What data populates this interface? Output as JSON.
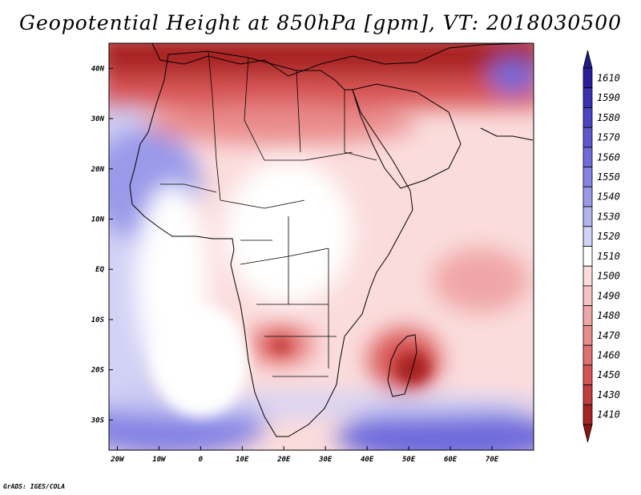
{
  "title": "Geopotential Height at 850hPa [gpm], VT: 2018030500",
  "credit": "GrADS: IGES/COLA",
  "map": {
    "region": "Africa",
    "field": "Geopotential Height at 850hPa",
    "units": "gpm",
    "valid_time": "2018030500",
    "lon_range": [
      -22,
      80
    ],
    "lat_range": [
      -36,
      45
    ],
    "lon_ticks": [
      {
        "value": -20,
        "label": "20W"
      },
      {
        "value": -10,
        "label": "10W"
      },
      {
        "value": 0,
        "label": "0"
      },
      {
        "value": 10,
        "label": "10E"
      },
      {
        "value": 20,
        "label": "20E"
      },
      {
        "value": 30,
        "label": "30E"
      },
      {
        "value": 40,
        "label": "40E"
      },
      {
        "value": 50,
        "label": "50E"
      },
      {
        "value": 60,
        "label": "60E"
      },
      {
        "value": 70,
        "label": "70E"
      }
    ],
    "lat_ticks": [
      {
        "value": 40,
        "label": "40N"
      },
      {
        "value": 30,
        "label": "30N"
      },
      {
        "value": 20,
        "label": "20N"
      },
      {
        "value": 10,
        "label": "10N"
      },
      {
        "value": 0,
        "label": "EQ"
      },
      {
        "value": -10,
        "label": "10S"
      },
      {
        "value": -20,
        "label": "20S"
      },
      {
        "value": -30,
        "label": "30S"
      }
    ]
  },
  "colorbar": {
    "levels": [
      {
        "label": "1610",
        "color": "#2a1e9c"
      },
      {
        "label": "1590",
        "color": "#3a30b4"
      },
      {
        "label": "1580",
        "color": "#4a44c6"
      },
      {
        "label": "1570",
        "color": "#5c58d2"
      },
      {
        "label": "1560",
        "color": "#6e6cdc"
      },
      {
        "label": "1550",
        "color": "#8482e4"
      },
      {
        "label": "1540",
        "color": "#9a9aea"
      },
      {
        "label": "1530",
        "color": "#b4b4f0"
      },
      {
        "label": "1520",
        "color": "#d2d2f6"
      },
      {
        "label": "1510",
        "color": "#ffffff"
      },
      {
        "label": "1500",
        "color": "#fbdcdc"
      },
      {
        "label": "1490",
        "color": "#f6c2c2"
      },
      {
        "label": "1480",
        "color": "#f0a6a6"
      },
      {
        "label": "1470",
        "color": "#ea8c8c"
      },
      {
        "label": "1460",
        "color": "#e27070"
      },
      {
        "label": "1450",
        "color": "#d85454"
      },
      {
        "label": "1430",
        "color": "#c63c3c"
      },
      {
        "label": "1410",
        "color": "#a82424"
      }
    ],
    "top_arrow_color": "#22188c",
    "bottom_arrow_color": "#8e1414"
  }
}
